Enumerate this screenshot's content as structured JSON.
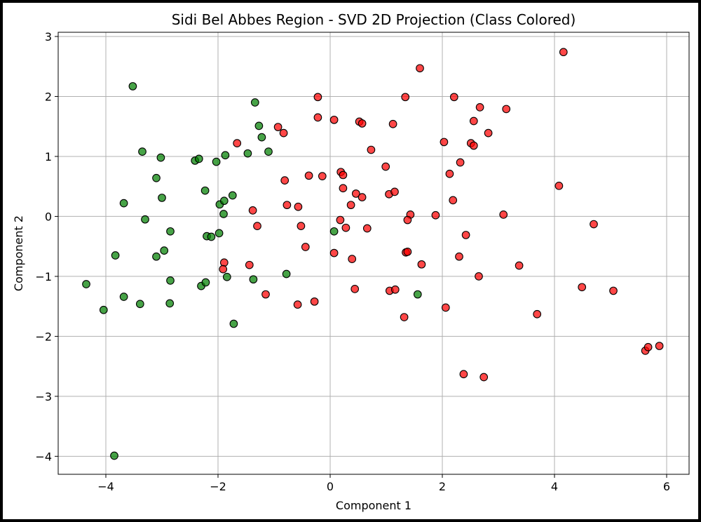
{
  "chart_data": {
    "type": "scatter",
    "title": "Sidi Bel Abbes Region - SVD 2D Projection (Class Colored)",
    "xlabel": "Component 1",
    "ylabel": "Component 2",
    "xlim": [
      -4.85,
      6.4
    ],
    "ylim": [
      -4.3,
      3.07
    ],
    "xticks": [
      -4,
      -2,
      0,
      2,
      4,
      6
    ],
    "xtick_labels": [
      "−4",
      "−2",
      "0",
      "2",
      "4",
      "6"
    ],
    "yticks": [
      3,
      2,
      1,
      0,
      -1,
      -2,
      -3,
      -4
    ],
    "ytick_labels": [
      "3",
      "2",
      "1",
      "0",
      "−1",
      "−2",
      "−3",
      "−4"
    ],
    "grid": true,
    "legend": "none",
    "series": [
      {
        "color": "#008000",
        "points": [
          [
            -3.52,
            2.17
          ],
          [
            -3.35,
            1.08
          ],
          [
            -3.02,
            0.98
          ],
          [
            -3.1,
            0.64
          ],
          [
            -3.0,
            0.31
          ],
          [
            -3.68,
            0.22
          ],
          [
            -3.3,
            -0.05
          ],
          [
            -2.85,
            -0.25
          ],
          [
            -2.96,
            -0.57
          ],
          [
            -3.1,
            -0.67
          ],
          [
            -3.83,
            -0.65
          ],
          [
            -4.35,
            -1.13
          ],
          [
            -4.04,
            -1.56
          ],
          [
            -3.68,
            -1.34
          ],
          [
            -3.39,
            -1.46
          ],
          [
            -2.85,
            -1.07
          ],
          [
            -2.86,
            -1.45
          ],
          [
            -3.85,
            -3.99
          ],
          [
            -2.41,
            0.93
          ],
          [
            -2.34,
            0.96
          ],
          [
            -2.23,
            0.43
          ],
          [
            -2.2,
            -0.33
          ],
          [
            -2.12,
            -0.34
          ],
          [
            -1.98,
            -0.28
          ],
          [
            -1.97,
            0.2
          ],
          [
            -1.89,
            0.26
          ],
          [
            -1.9,
            0.04
          ],
          [
            -1.87,
            1.02
          ],
          [
            -2.03,
            0.91
          ],
          [
            -1.74,
            0.35
          ],
          [
            -1.34,
            1.9
          ],
          [
            -1.27,
            1.51
          ],
          [
            -1.22,
            1.32
          ],
          [
            -1.47,
            1.05
          ],
          [
            -1.1,
            1.08
          ],
          [
            -2.3,
            -1.16
          ],
          [
            -2.22,
            -1.1
          ],
          [
            -1.84,
            -1.01
          ],
          [
            -1.72,
            -1.79
          ],
          [
            -1.37,
            -1.05
          ],
          [
            -0.78,
            -0.96
          ],
          [
            0.07,
            -0.25
          ],
          [
            1.56,
            -1.3
          ]
        ]
      },
      {
        "color": "#ff0000",
        "points": [
          [
            1.6,
            2.47
          ],
          [
            4.16,
            2.74
          ],
          [
            -0.22,
            1.99
          ],
          [
            1.34,
            1.99
          ],
          [
            2.21,
            1.99
          ],
          [
            -0.22,
            1.65
          ],
          [
            0.07,
            1.61
          ],
          [
            0.52,
            1.58
          ],
          [
            0.57,
            1.55
          ],
          [
            1.12,
            1.54
          ],
          [
            -0.93,
            1.49
          ],
          [
            -0.83,
            1.39
          ],
          [
            2.67,
            1.82
          ],
          [
            3.14,
            1.79
          ],
          [
            2.56,
            1.59
          ],
          [
            2.82,
            1.39
          ],
          [
            2.03,
            1.24
          ],
          [
            2.51,
            1.22
          ],
          [
            2.56,
            1.18
          ],
          [
            -1.66,
            1.22
          ],
          [
            0.73,
            1.11
          ],
          [
            2.32,
            0.9
          ],
          [
            2.13,
            0.71
          ],
          [
            0.99,
            0.83
          ],
          [
            0.19,
            0.74
          ],
          [
            0.23,
            0.69
          ],
          [
            -0.38,
            0.68
          ],
          [
            -0.14,
            0.67
          ],
          [
            -0.81,
            0.6
          ],
          [
            0.23,
            0.47
          ],
          [
            0.46,
            0.38
          ],
          [
            0.57,
            0.32
          ],
          [
            1.05,
            0.37
          ],
          [
            1.15,
            0.41
          ],
          [
            2.19,
            0.27
          ],
          [
            4.08,
            0.51
          ],
          [
            -0.77,
            0.19
          ],
          [
            -0.57,
            0.16
          ],
          [
            -1.38,
            0.1
          ],
          [
            0.37,
            0.19
          ],
          [
            1.43,
            0.03
          ],
          [
            1.88,
            0.02
          ],
          [
            3.09,
            0.03
          ],
          [
            0.18,
            -0.06
          ],
          [
            1.38,
            -0.06
          ],
          [
            4.7,
            -0.13
          ],
          [
            -1.3,
            -0.16
          ],
          [
            -0.52,
            -0.16
          ],
          [
            0.28,
            -0.19
          ],
          [
            0.66,
            -0.2
          ],
          [
            2.42,
            -0.31
          ],
          [
            -0.44,
            -0.51
          ],
          [
            1.35,
            -0.6
          ],
          [
            1.38,
            -0.59
          ],
          [
            0.07,
            -0.61
          ],
          [
            0.39,
            -0.71
          ],
          [
            2.3,
            -0.67
          ],
          [
            -1.89,
            -0.77
          ],
          [
            -1.44,
            -0.81
          ],
          [
            -1.91,
            -0.88
          ],
          [
            1.63,
            -0.8
          ],
          [
            3.37,
            -0.82
          ],
          [
            2.65,
            -1.0
          ],
          [
            4.49,
            -1.18
          ],
          [
            5.05,
            -1.24
          ],
          [
            0.44,
            -1.21
          ],
          [
            1.06,
            -1.24
          ],
          [
            1.16,
            -1.22
          ],
          [
            -1.15,
            -1.3
          ],
          [
            -0.58,
            -1.47
          ],
          [
            -0.28,
            -1.42
          ],
          [
            2.06,
            -1.52
          ],
          [
            1.32,
            -1.68
          ],
          [
            3.69,
            -1.63
          ],
          [
            5.62,
            -2.24
          ],
          [
            5.67,
            -2.18
          ],
          [
            5.87,
            -2.16
          ],
          [
            2.38,
            -2.63
          ],
          [
            2.74,
            -2.68
          ]
        ]
      }
    ]
  }
}
